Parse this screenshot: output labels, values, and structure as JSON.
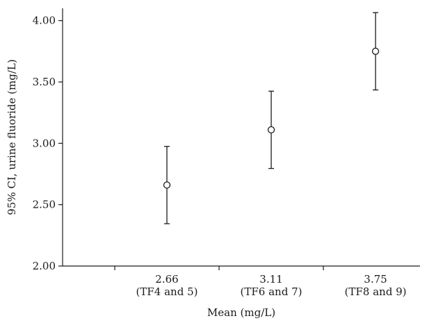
{
  "chart_data": {
    "type": "scatter",
    "title": "",
    "xlabel": "Mean (mg/L)",
    "ylabel": "95% CI, urine fluoride (mg/L)",
    "ylim": [
      2.0,
      4.1
    ],
    "yticks": [
      "2.00",
      "2.50",
      "3.00",
      "3.50",
      "4.00"
    ],
    "ytick_values": [
      2.0,
      2.5,
      3.0,
      3.5,
      4.0
    ],
    "grid": false,
    "legend": "none",
    "categories": [
      {
        "line1": "2.66",
        "line2": "(TF4 and 5)"
      },
      {
        "line1": "3.11",
        "line2": "(TF6 and 7)"
      },
      {
        "line1": "3.75",
        "line2": "(TF8 and 9)"
      }
    ],
    "points": [
      {
        "mean": 2.66,
        "lower": 2.345,
        "upper": 2.975
      },
      {
        "mean": 3.11,
        "lower": 2.795,
        "upper": 3.425
      },
      {
        "mean": 3.75,
        "lower": 3.435,
        "upper": 4.065
      }
    ],
    "colors": {
      "ink": "#1a1a1a"
    }
  }
}
